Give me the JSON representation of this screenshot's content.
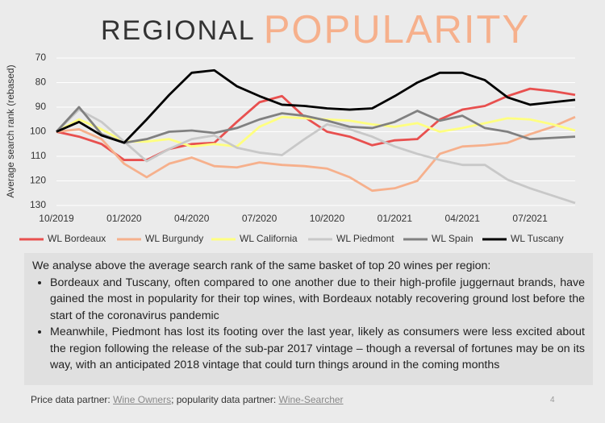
{
  "chart_data": {
    "type": "line",
    "title": "REGIONAL",
    "title_highlight": "POPULARITY",
    "ylabel": "Average search rank (rebased)",
    "categories": [
      "10/2019",
      null,
      null,
      "01/2020",
      null,
      null,
      "04/2020",
      null,
      null,
      "07/2020",
      null,
      null,
      "10/2020",
      null,
      null,
      "01/2021",
      null,
      null,
      "04/2021",
      null,
      null,
      "07/2021",
      null,
      null
    ],
    "series": [
      {
        "name": "WL Bordeaux",
        "color": "#e8504f",
        "values": [
          100,
          102,
          105,
          111.5,
          111.5,
          107,
          105,
          104.5,
          96,
          88,
          85.5,
          94,
          100,
          102,
          105.5,
          103.5,
          103,
          95,
          91,
          89.5,
          85.5,
          82.5,
          83.5,
          85
        ]
      },
      {
        "name": "WL Burgundy",
        "color": "#f6b08c",
        "values": [
          100,
          99,
          103,
          113,
          118.5,
          113,
          110.5,
          114,
          114.5,
          112.5,
          113.5,
          114,
          115,
          118.5,
          124,
          123,
          120,
          109,
          106,
          105.5,
          104.5,
          101,
          98,
          94
        ]
      },
      {
        "name": "WL California",
        "color": "#ffff80",
        "values": [
          100,
          95,
          99,
          104,
          104,
          103,
          106,
          105,
          106,
          98,
          94,
          94.5,
          95,
          95.5,
          97,
          98,
          96.5,
          100,
          98.5,
          96.5,
          94.5,
          95,
          97,
          99.5
        ]
      },
      {
        "name": "WL Piedmont",
        "color": "#c8c8c8",
        "values": [
          100,
          91,
          96,
          104,
          112,
          107,
          103,
          101.5,
          106.5,
          108.5,
          109.5,
          103,
          97,
          99,
          102,
          106,
          109,
          111.5,
          113.5,
          113.5,
          119.5,
          123,
          126,
          129
        ]
      },
      {
        "name": "WL Spain",
        "color": "#808080",
        "values": [
          100,
          90,
          101,
          104.5,
          103,
          100,
          99.5,
          100.5,
          98.5,
          95,
          92.5,
          93.5,
          95.5,
          98,
          98.5,
          96,
          91.5,
          95.5,
          93.5,
          98.5,
          100,
          103,
          102.5,
          102
        ]
      },
      {
        "name": "WL Tuscany",
        "color": "#000000",
        "values": [
          100,
          96,
          101.5,
          104.5,
          95,
          85,
          76,
          75,
          81.5,
          85.5,
          89,
          89.5,
          90.5,
          91,
          90.5,
          85.5,
          80,
          76,
          76,
          79,
          86,
          89,
          88,
          87
        ]
      }
    ],
    "ylim": [
      70,
      130
    ],
    "yticks": [
      70,
      80,
      90,
      100,
      110,
      120,
      130
    ],
    "y_inverted": true,
    "grid": true,
    "legend": "bottom"
  },
  "text": {
    "intro": "We analyse above the average search rank of the same basket of top 20 wines per region:",
    "bullets": [
      "Bordeaux and Tuscany, often compared to one another due to their high-profile juggernaut brands, have gained the most in popularity for their top wines, with Bordeaux notably recovering ground lost before the start of the coronavirus pandemic",
      "Meanwhile, Piedmont has lost its footing over the last year, likely as consumers were less excited about the region following the release of the sub-par 2017 vintage – though a reversal of fortunes may be on its way, with an anticipated 2018 vintage that could turn things around in the coming months"
    ]
  },
  "footer": {
    "prefix": "Price data partner:",
    "link1": "Wine Owners",
    "middle": "; popularity data partner:",
    "link2": "Wine-Searcher",
    "page_number": "4"
  }
}
